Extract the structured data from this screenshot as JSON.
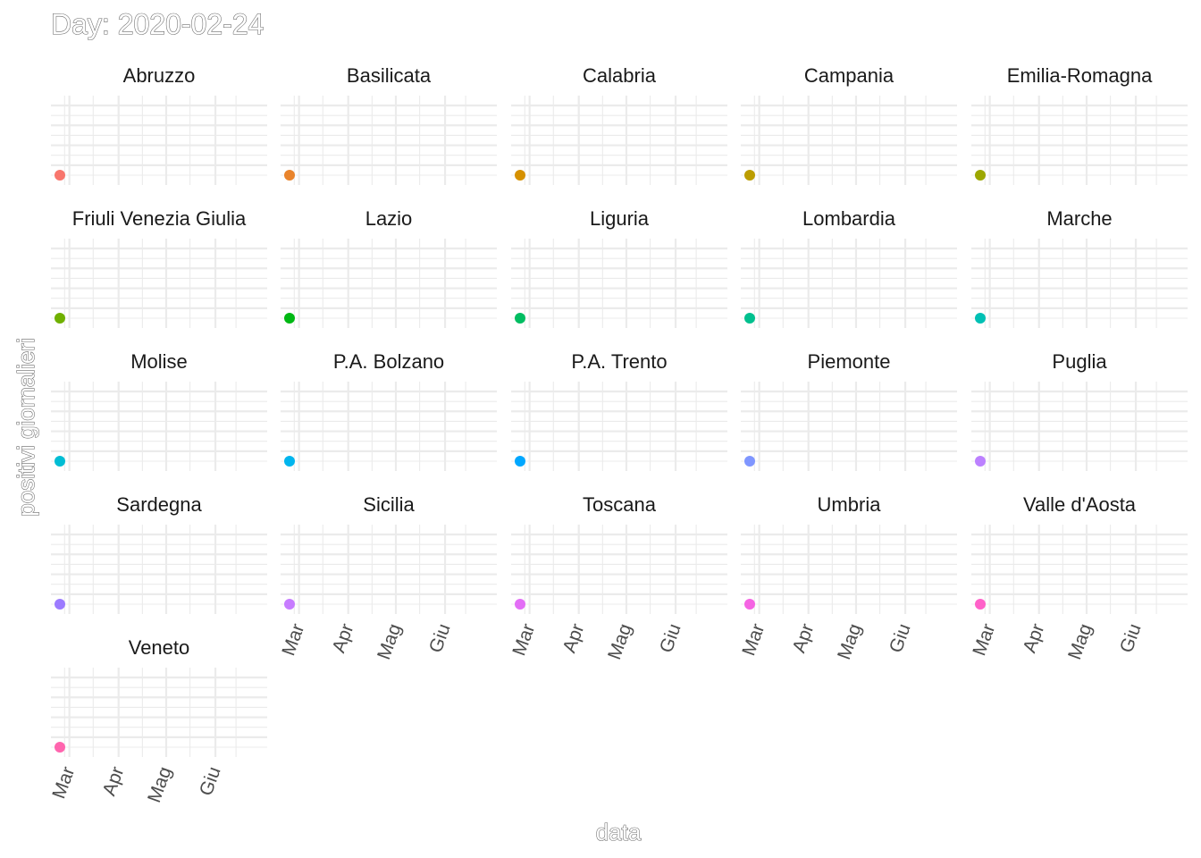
{
  "chart_data": {
    "type": "scatter",
    "title": "Day: 2020-02-24",
    "xlabel": "data",
    "ylabel": "positivi giornalieri",
    "x_tick_labels": [
      "Mar",
      "Apr",
      "Mag",
      "Giu"
    ],
    "x_ticks": [
      "2020-03-01",
      "2020-04-01",
      "2020-05-01",
      "2020-06-01"
    ],
    "xlim": [
      "2020-02-24",
      "2020-06-28"
    ],
    "grid": true,
    "legend": "none",
    "series": [
      {
        "name": "Abruzzo",
        "color": "#F8766D",
        "x": [
          "2020-02-24"
        ],
        "values": [
          0
        ]
      },
      {
        "name": "Basilicata",
        "color": "#E9842C",
        "x": [
          "2020-02-24"
        ],
        "values": [
          0
        ]
      },
      {
        "name": "Calabria",
        "color": "#D69100",
        "x": [
          "2020-02-24"
        ],
        "values": [
          0
        ]
      },
      {
        "name": "Campania",
        "color": "#BC9D00",
        "x": [
          "2020-02-24"
        ],
        "values": [
          0
        ]
      },
      {
        "name": "Emilia-Romagna",
        "color": "#9CA700",
        "x": [
          "2020-02-24"
        ],
        "values": [
          0
        ]
      },
      {
        "name": "Friuli Venezia Giulia",
        "color": "#6FB000",
        "x": [
          "2020-02-24"
        ],
        "values": [
          0
        ]
      },
      {
        "name": "Lazio",
        "color": "#00B813",
        "x": [
          "2020-02-24"
        ],
        "values": [
          0
        ]
      },
      {
        "name": "Liguria",
        "color": "#00BD61",
        "x": [
          "2020-02-24"
        ],
        "values": [
          0
        ]
      },
      {
        "name": "Lombardia",
        "color": "#00C08E",
        "x": [
          "2020-02-24"
        ],
        "values": [
          0
        ]
      },
      {
        "name": "Marche",
        "color": "#00C0B4",
        "x": [
          "2020-02-24"
        ],
        "values": [
          0
        ]
      },
      {
        "name": "Molise",
        "color": "#00BDD4",
        "x": [
          "2020-02-24"
        ],
        "values": [
          0
        ]
      },
      {
        "name": "P.A. Bolzano",
        "color": "#00B5EE",
        "x": [
          "2020-02-24"
        ],
        "values": [
          0
        ]
      },
      {
        "name": "P.A. Trento",
        "color": "#00A7FF",
        "x": [
          "2020-02-24"
        ],
        "values": [
          0
        ]
      },
      {
        "name": "Piemonte",
        "color": "#7F96FF",
        "x": [
          "2020-02-24"
        ],
        "values": [
          0
        ]
      },
      {
        "name": "Puglia",
        "color": "#BC81FF",
        "x": [
          "2020-02-24"
        ],
        "values": [
          0
        ]
      },
      {
        "name": "Sardegna",
        "color": "#9C7BFF",
        "x": [
          "2020-02-24"
        ],
        "values": [
          0
        ]
      },
      {
        "name": "Sicilia",
        "color": "#C77CFF",
        "x": [
          "2020-02-24"
        ],
        "values": [
          0
        ]
      },
      {
        "name": "Toscana",
        "color": "#E36EF6",
        "x": [
          "2020-02-24"
        ],
        "values": [
          0
        ]
      },
      {
        "name": "Umbria",
        "color": "#F564E3",
        "x": [
          "2020-02-24"
        ],
        "values": [
          0
        ]
      },
      {
        "name": "Valle d'Aosta",
        "color": "#FF61C9",
        "x": [
          "2020-02-24"
        ],
        "values": [
          0
        ]
      },
      {
        "name": "Veneto",
        "color": "#FF65AE",
        "x": [
          "2020-02-24"
        ],
        "values": [
          0
        ]
      }
    ]
  }
}
